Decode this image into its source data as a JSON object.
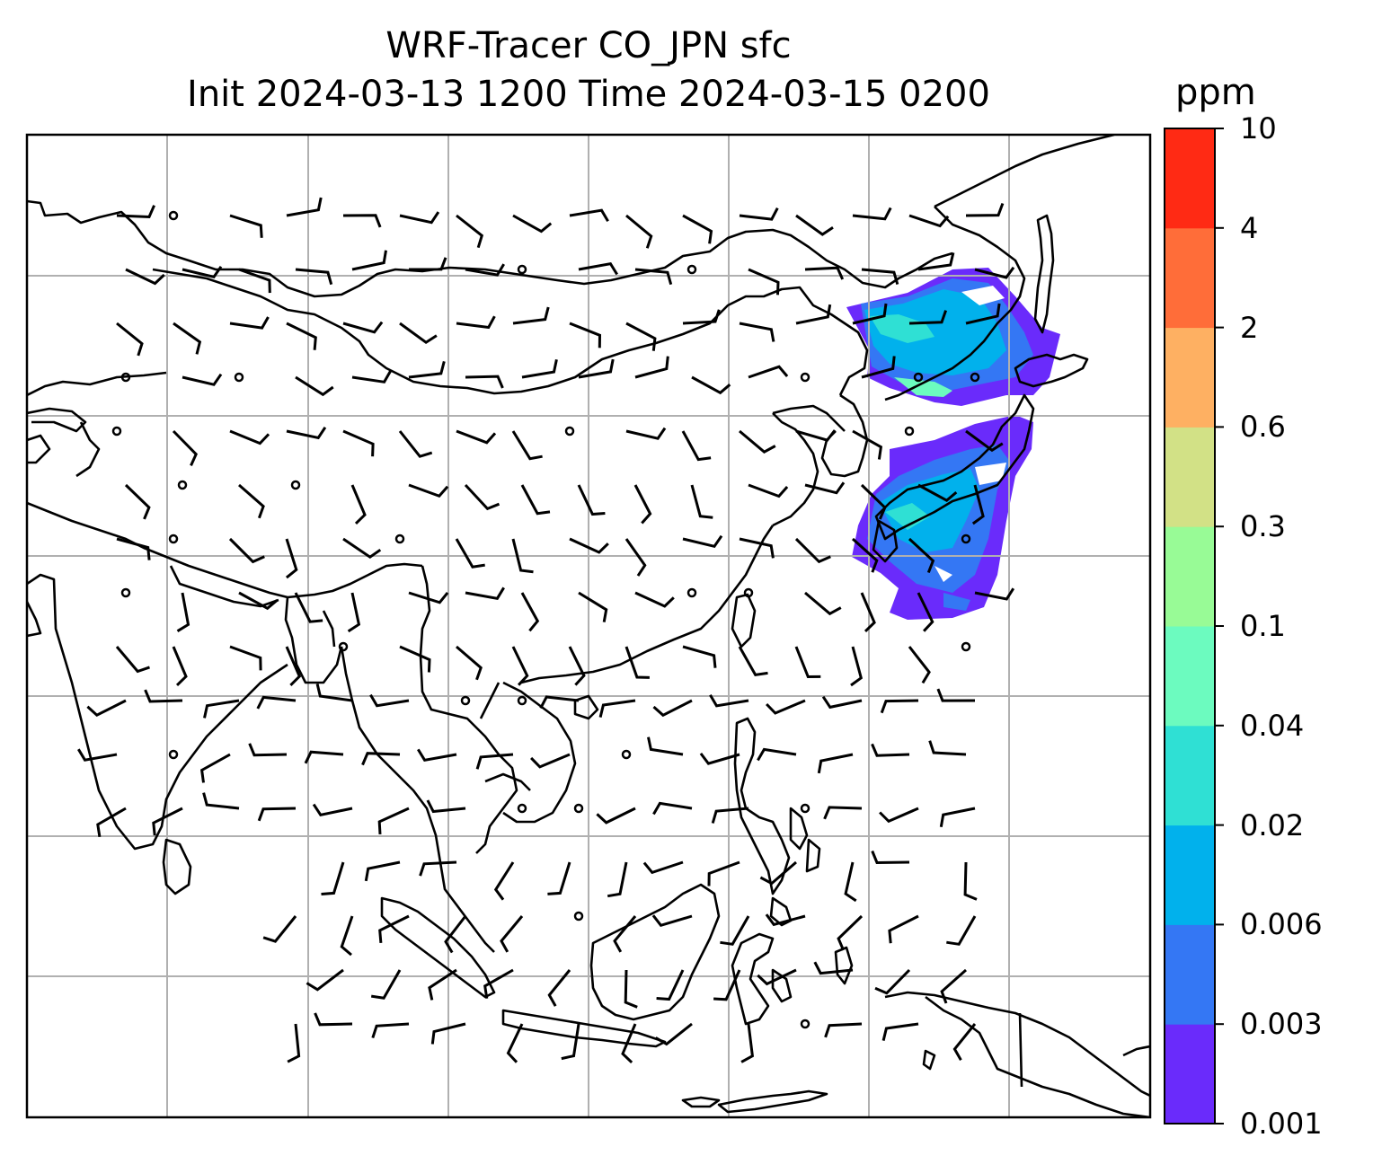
{
  "title": {
    "line1": "WRF-Tracer CO_JPN sfc",
    "line2": "Init 2024-03-13 1200 Time 2024-03-15 0200"
  },
  "colorbar": {
    "label": "ppm",
    "ticks": [
      "0.001",
      "0.003",
      "0.006",
      "0.02",
      "0.04",
      "0.1",
      "0.3",
      "0.6",
      "2",
      "4",
      "10"
    ],
    "colors": [
      "#6a2bfb",
      "#3477f4",
      "#01b1ec",
      "#2fe0d4",
      "#6cfbbf",
      "#98fb96",
      "#d2e186",
      "#feb062",
      "#ff6d39",
      "#ff2a14"
    ]
  },
  "map": {
    "projection_note": "",
    "frame_color": "#000000",
    "grid_color": "#b0b0b0",
    "coastline_color": "#000000",
    "barb_color": "#000000"
  }
}
